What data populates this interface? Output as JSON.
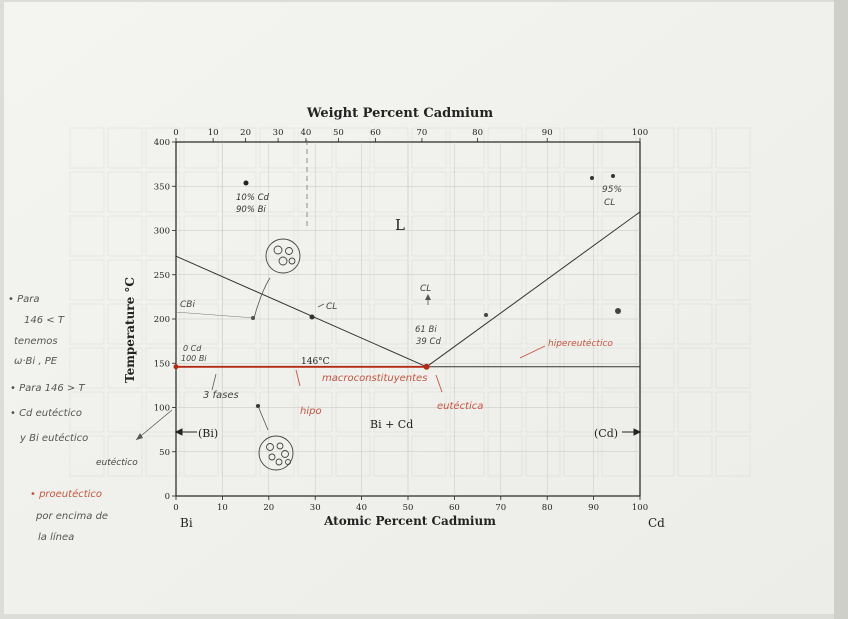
{
  "chart_data": {
    "type": "phase-diagram",
    "title": "Weight Percent Cadmium",
    "xlabel": "Atomic Percent Cadmium",
    "ylabel": "Temperature °C",
    "xlim": [
      0,
      100
    ],
    "ylim": [
      0,
      400
    ],
    "x_ticks": [
      "0",
      "10",
      "20",
      "30",
      "40",
      "50",
      "60",
      "70",
      "80",
      "90",
      "100"
    ],
    "y_ticks": [
      "0",
      "50",
      "100",
      "150",
      "200",
      "250",
      "300",
      "350",
      "400"
    ],
    "top_ticks": [
      "0",
      "10",
      "20",
      "30",
      "40",
      "50",
      "60",
      "70",
      "80",
      "90",
      "100"
    ],
    "left_component": "Bi",
    "right_component": "Cd",
    "eutectic": {
      "x": 54,
      "temperature": 146,
      "label": "146°C"
    },
    "liquidus_left": [
      [
        0,
        271
      ],
      [
        54,
        146
      ]
    ],
    "liquidus_right": [
      [
        54,
        146
      ],
      [
        100,
        321
      ]
    ],
    "region_labels": {
      "liquid": "L",
      "two_solid": "Bi + Cd",
      "bi_phase": "(Bi)",
      "cd_phase": "(Cd)"
    }
  },
  "annotations": {
    "left_note_1": [
      "• Para",
      "146 < T",
      "tenemos",
      "ω·Bi , PE"
    ],
    "left_note_2": [
      "• Para 146 > T",
      "• Cd eutéctico",
      "y Bi eutéctico"
    ],
    "left_note_3": [
      "• proeutéctico",
      "por encima de",
      "la línea"
    ],
    "small_labels": {
      "cd_bi_top": [
        "10% Cd",
        "90% Bi"
      ],
      "cbi": "CBi",
      "cl": "CL",
      "cl_mid": "CL",
      "cl_right": [
        "95%",
        "CL"
      ],
      "zero_cd": [
        "0 Cd",
        "100 Bi"
      ],
      "comp_61": [
        "61 Bi",
        "39 Cd"
      ],
      "macro": "macroconstituyentes",
      "eutectica": "eutéctica",
      "hiper": "hipereutéctico",
      "hipo": "hipo",
      "fases": "3 fases",
      "eutectico": "eutéctico"
    }
  }
}
